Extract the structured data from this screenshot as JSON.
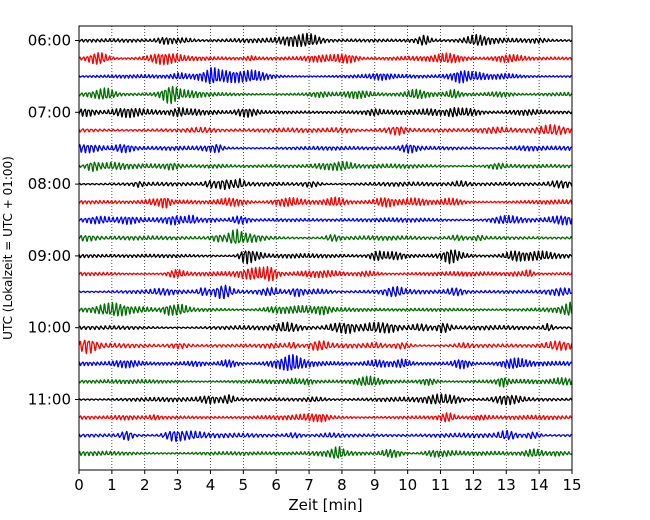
{
  "chart_data": {
    "type": "line",
    "subtype": "seismogram-helicorder",
    "xlabel": "Zeit  [min]",
    "ylabel": "UTC (Lokalzeit = UTC + 01:00)",
    "xlim": [
      0,
      15
    ],
    "x_ticks": [
      0,
      1,
      2,
      3,
      4,
      5,
      6,
      7,
      8,
      9,
      10,
      11,
      12,
      13,
      14,
      15
    ],
    "x_tick_labels": [
      "0",
      "1",
      "2",
      "3",
      "4",
      "5",
      "6",
      "7",
      "8",
      "9",
      "10",
      "11",
      "12",
      "13",
      "14",
      "15"
    ],
    "y_tick_labels": [
      "06:00",
      "07:00",
      "08:00",
      "09:00",
      "10:00",
      "11:00"
    ],
    "grid": "vertical dotted at each minute",
    "trace_interval_minutes": 15,
    "traces_per_hour": 4,
    "color_cycle": [
      "#000000",
      "#ff0000",
      "#0000ff",
      "#007000"
    ],
    "traces": [
      {
        "start": "06:00",
        "color": "#000000"
      },
      {
        "start": "06:15",
        "color": "#ff0000"
      },
      {
        "start": "06:30",
        "color": "#0000ff"
      },
      {
        "start": "06:45",
        "color": "#007000"
      },
      {
        "start": "07:00",
        "color": "#000000"
      },
      {
        "start": "07:15",
        "color": "#ff0000"
      },
      {
        "start": "07:30",
        "color": "#0000ff"
      },
      {
        "start": "07:45",
        "color": "#007000"
      },
      {
        "start": "08:00",
        "color": "#000000"
      },
      {
        "start": "08:15",
        "color": "#ff0000"
      },
      {
        "start": "08:30",
        "color": "#0000ff"
      },
      {
        "start": "08:45",
        "color": "#007000"
      },
      {
        "start": "09:00",
        "color": "#000000"
      },
      {
        "start": "09:15",
        "color": "#ff0000"
      },
      {
        "start": "09:30",
        "color": "#0000ff"
      },
      {
        "start": "09:45",
        "color": "#007000"
      },
      {
        "start": "10:00",
        "color": "#000000"
      },
      {
        "start": "10:15",
        "color": "#ff0000"
      },
      {
        "start": "10:30",
        "color": "#0000ff"
      },
      {
        "start": "10:45",
        "color": "#007000"
      },
      {
        "start": "11:00",
        "color": "#000000"
      },
      {
        "start": "11:15",
        "color": "#ff0000"
      },
      {
        "start": "11:30",
        "color": "#0000ff"
      },
      {
        "start": "11:45",
        "color": "#007000"
      }
    ]
  }
}
